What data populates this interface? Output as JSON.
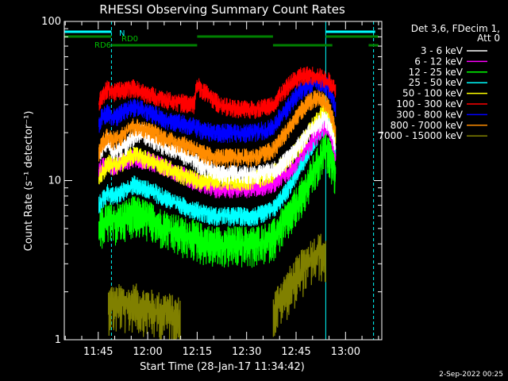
{
  "chart_data": {
    "type": "line",
    "title": "RHESSI Observing Summary Count Rates",
    "xlabel": "Start Time (28-Jan-17 11:34:42)",
    "ylabel": "Count Rate (s⁻¹ detector⁻¹)",
    "y_scale": "log",
    "ylim": [
      1,
      100
    ],
    "y_ticks": [
      {
        "value": 1,
        "label": "1"
      },
      {
        "value": 10,
        "label": "10"
      },
      {
        "value": 100,
        "label": "100"
      }
    ],
    "x_ticks": [
      {
        "value": 45,
        "label": "11:45"
      },
      {
        "value": 60,
        "label": "12:00"
      },
      {
        "value": 75,
        "label": "12:15"
      },
      {
        "value": 90,
        "label": "12:30"
      },
      {
        "value": 105,
        "label": "12:45"
      },
      {
        "value": 120,
        "label": "13:00"
      }
    ],
    "xlim": [
      34.7,
      131
    ],
    "footer": "2-Sep-2022 00:25",
    "legend_header": [
      "Det 3,6, FDecim 1,",
      "Att 0"
    ],
    "legend_position": "right",
    "flags": {
      "saa_label": "N",
      "rd0_label": "RD0",
      "rd6_label": "RD6",
      "n_segments": [
        [
          34.7,
          49
        ],
        [
          114,
          129
        ]
      ],
      "rd0_segments": [
        [
          34.7,
          49
        ],
        [
          75,
          98
        ],
        [
          114,
          130
        ]
      ],
      "rd6_segments": [
        [
          49,
          75
        ],
        [
          98,
          116
        ],
        [
          127,
          130
        ]
      ]
    },
    "vlines": [
      {
        "x": 34.7,
        "style": "solid",
        "color": "#00ffff"
      },
      {
        "x": 49,
        "style": "dashed",
        "color": "#00ffff"
      },
      {
        "x": 114,
        "style": "solid",
        "color": "#00ffff"
      },
      {
        "x": 128.5,
        "style": "dashed",
        "color": "#00ffff"
      }
    ],
    "x": [
      45.2,
      46,
      47,
      48,
      49,
      50,
      52,
      54,
      56,
      58,
      60,
      62,
      64,
      66,
      68,
      70,
      72,
      74,
      75,
      76,
      78,
      80,
      82,
      84,
      86,
      88,
      90,
      92,
      94,
      96,
      98,
      99,
      100,
      102,
      104,
      106,
      108,
      110,
      112,
      113,
      114,
      115,
      116,
      117
    ],
    "series": [
      {
        "name": "3 - 6 keV",
        "color": "#ffffff",
        "values": [
          14,
          16,
          17,
          18,
          16,
          15,
          16,
          17,
          19,
          20,
          19,
          18,
          17,
          16,
          16,
          15,
          14,
          13.5,
          13,
          12.5,
          12,
          11.5,
          11,
          11,
          11,
          11,
          11,
          11,
          11,
          11.5,
          11.5,
          12,
          12.5,
          13.5,
          15,
          17,
          19,
          21,
          23,
          24,
          24,
          23,
          20,
          16
        ]
      },
      {
        "name": "6 - 12 keV",
        "color": "#ff00ff",
        "values": [
          11.5,
          12,
          12.5,
          13,
          12.5,
          12.5,
          13,
          13.5,
          14,
          13.5,
          13.5,
          13,
          12.5,
          12,
          11.5,
          11,
          10.5,
          10,
          10,
          9.5,
          9.5,
          9,
          9,
          9,
          9,
          9,
          9,
          9,
          9,
          9.5,
          9.5,
          10,
          10.5,
          11,
          12,
          14,
          16,
          18,
          20,
          21,
          22,
          21,
          18,
          14
        ]
      },
      {
        "name": "12 - 25 keV",
        "color": "#00ff00",
        "values": [
          5,
          5.2,
          5.5,
          5.7,
          5.5,
          5.5,
          5.7,
          6,
          6.2,
          6,
          5.8,
          5.5,
          5.2,
          5,
          4.8,
          4.6,
          4.5,
          4.4,
          4.3,
          4.2,
          4.1,
          4,
          4,
          4,
          4,
          4,
          4,
          4,
          4.1,
          4.2,
          4.4,
          4.6,
          5,
          5.6,
          6.5,
          7.5,
          9,
          11,
          13,
          15,
          16,
          15,
          13,
          11
        ]
      },
      {
        "name": "25 - 50 keV",
        "color": "#00ffff",
        "values": [
          7,
          7.5,
          8,
          8.5,
          8,
          8,
          8.5,
          9,
          9.5,
          9,
          8.8,
          8.5,
          8,
          7.7,
          7.3,
          7,
          6.8,
          6.6,
          6.5,
          6.4,
          6.2,
          6,
          6,
          6,
          6,
          6,
          6,
          6,
          6.1,
          6.3,
          6.6,
          7,
          7.5,
          8.5,
          10,
          12,
          14,
          17,
          20,
          22,
          23,
          22,
          19,
          15
        ]
      },
      {
        "name": "50 - 100 keV",
        "color": "#ffff00",
        "values": [
          10.5,
          11,
          12,
          13,
          12.5,
          12.5,
          13,
          14,
          14.5,
          14,
          13.5,
          13,
          12.5,
          12,
          11.5,
          11,
          10.5,
          10.3,
          10,
          10,
          10,
          10,
          10,
          10,
          10,
          10,
          10,
          10.2,
          10.4,
          10.8,
          11.2,
          11.7,
          12.2,
          13,
          14.5,
          16.5,
          19,
          22,
          25,
          27,
          28,
          27,
          23,
          18
        ]
      },
      {
        "name": "100 - 300 keV",
        "color": "#ff0000",
        "values": [
          30,
          34,
          36,
          38,
          36,
          36,
          37,
          38,
          38,
          36,
          35,
          34,
          33,
          32,
          31.5,
          31,
          30.5,
          30,
          40,
          38,
          35,
          32,
          30,
          29,
          28.5,
          28,
          28,
          28,
          28.5,
          29,
          30.5,
          32,
          34,
          38,
          42,
          45,
          46,
          46,
          45,
          44,
          43,
          42,
          40,
          36
        ]
      },
      {
        "name": "300 - 800 keV",
        "color": "#0000ff",
        "values": [
          22,
          25,
          26,
          27,
          25,
          25,
          26.5,
          28,
          29,
          28,
          27,
          26,
          25,
          24,
          23.5,
          23,
          22.5,
          22,
          21.5,
          21,
          20.5,
          20,
          20,
          20,
          20,
          20,
          20,
          20,
          20.5,
          21,
          22,
          23,
          25,
          28,
          32,
          36,
          39,
          41,
          42,
          41,
          40,
          38,
          34,
          28
        ]
      },
      {
        "name": "800 - 7000 keV",
        "color": "#ff8c00",
        "values": [
          15,
          17,
          18,
          19,
          18,
          18,
          19,
          21,
          22,
          21,
          20.5,
          20,
          19,
          18,
          17.5,
          17,
          16.5,
          16,
          15.5,
          15,
          14.5,
          14,
          14,
          14,
          14,
          14,
          14,
          14,
          14.5,
          15,
          15.5,
          16.5,
          18,
          20,
          23,
          27,
          30,
          32,
          33,
          32,
          31,
          29,
          25,
          20
        ]
      },
      {
        "name": "7000 - 15000 keV",
        "color": "#808000",
        "values": [
          null,
          null,
          null,
          1.6,
          1.7,
          1.6,
          1.7,
          1.6,
          1.7,
          1.6,
          1.6,
          1.5,
          1.5,
          1.5,
          1.4,
          1.4,
          null,
          null,
          null,
          null,
          null,
          null,
          null,
          null,
          null,
          null,
          null,
          null,
          null,
          null,
          1.5,
          1.6,
          1.8,
          2.0,
          2.3,
          2.6,
          3.0,
          3.3,
          3.5,
          3.5,
          3.3,
          null,
          null,
          null
        ]
      }
    ]
  }
}
